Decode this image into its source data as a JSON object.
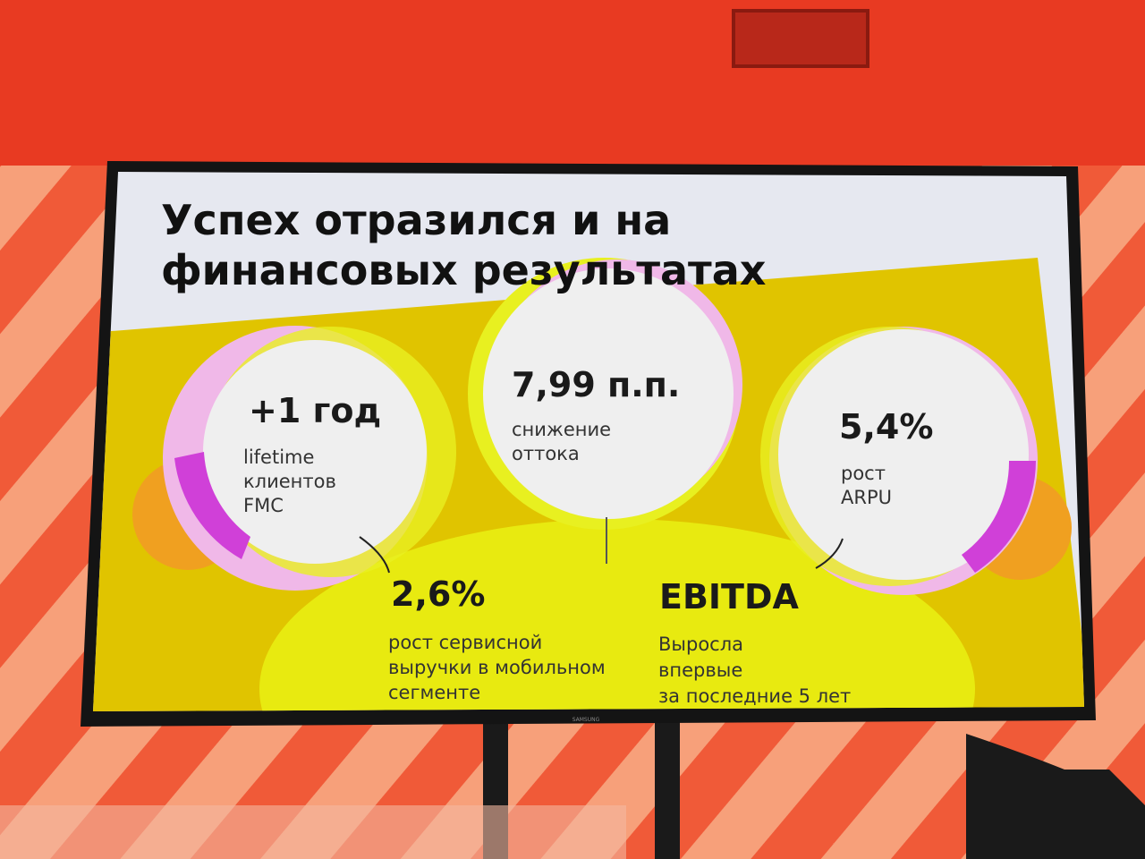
{
  "slide": {
    "title": [
      "Успех отразился и на",
      "финансовых результатах"
    ],
    "metrics": [
      {
        "value": "+1 год",
        "label": [
          "lifetime",
          "клиентов",
          "FMC"
        ]
      },
      {
        "value": "7,99 п.п.",
        "label": [
          "снижение",
          "оттока"
        ]
      },
      {
        "value": "5,4%",
        "label": [
          "рост",
          "ARPU"
        ]
      },
      {
        "value": "2,6%",
        "label": [
          "рост сервисной",
          "выручки в мобильном",
          "сегменте"
        ]
      },
      {
        "value": "EBITDA",
        "label": [
          "Выросла",
          "впервые",
          "за последние 5 лет"
        ]
      }
    ],
    "brand": "SAMSUNG"
  }
}
